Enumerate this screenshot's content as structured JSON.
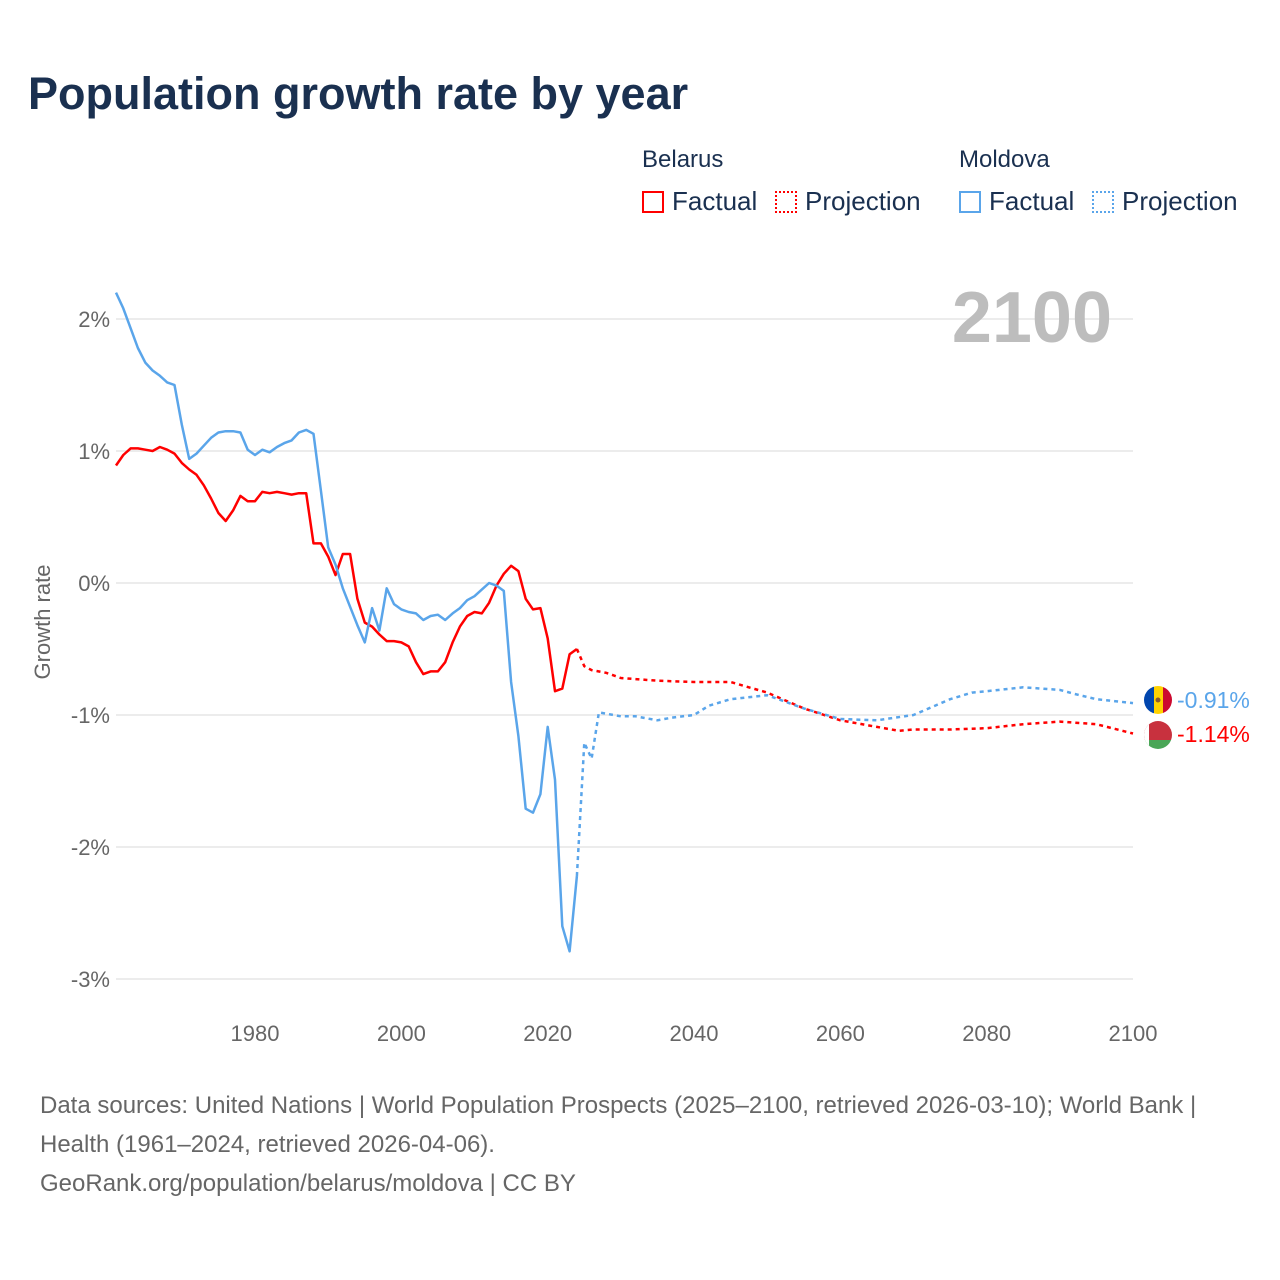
{
  "title": "Population growth rate by year",
  "legend": {
    "groups": [
      {
        "name": "Belarus",
        "factual": "Factual",
        "projection": "Projection",
        "color": "#ff0000"
      },
      {
        "name": "Moldova",
        "factual": "Factual",
        "projection": "Projection",
        "color": "#5aa5ea"
      }
    ]
  },
  "year_label": "2100",
  "end_labels": {
    "moldova": "-0.91%",
    "belarus": "-1.14%"
  },
  "footer": {
    "sources": "Data sources: United Nations | World Population Prospects (2025–2100, retrieved 2026-03-10); World Bank | Health (1961–2024, retrieved 2026-04-06).",
    "credit": "GeoRank.org/population/belarus/moldova | CC BY"
  },
  "chart_data": {
    "type": "line",
    "title": "Population growth rate by year",
    "xlabel": "",
    "ylabel": "Growth rate",
    "xlim": [
      1961,
      2100
    ],
    "ylim": [
      -3.3,
      2.4
    ],
    "grid": true,
    "x_ticks": [
      1980,
      2000,
      2020,
      2040,
      2060,
      2080,
      2100
    ],
    "x_tick_labels": [
      "1980",
      "2000",
      "2020",
      "2040",
      "2060",
      "2080",
      "2100"
    ],
    "y_ticks": [
      2,
      1,
      0,
      -1,
      -2,
      -3
    ],
    "y_tick_labels": [
      "2%",
      "1%",
      "0%",
      "-1%",
      "-2%",
      "-3%"
    ],
    "legend_placement": "top-right",
    "series": [
      {
        "name": "Belarus Factual",
        "color": "#ff0000",
        "style": "solid",
        "x": [
          1961,
          1962,
          1963,
          1964,
          1965,
          1966,
          1967,
          1968,
          1969,
          1970,
          1971,
          1972,
          1973,
          1974,
          1975,
          1976,
          1977,
          1978,
          1979,
          1980,
          1981,
          1982,
          1983,
          1984,
          1985,
          1986,
          1987,
          1988,
          1989,
          1990,
          1991,
          1992,
          1993,
          1994,
          1995,
          1996,
          1997,
          1998,
          1999,
          2000,
          2001,
          2002,
          2003,
          2004,
          2005,
          2006,
          2007,
          2008,
          2009,
          2010,
          2011,
          2012,
          2013,
          2014,
          2015,
          2016,
          2017,
          2018,
          2019,
          2020,
          2021,
          2022,
          2023,
          2024
        ],
        "y": [
          0.89,
          0.97,
          1.02,
          1.02,
          1.01,
          1.0,
          1.03,
          1.01,
          0.98,
          0.91,
          0.86,
          0.82,
          0.74,
          0.64,
          0.53,
          0.47,
          0.55,
          0.66,
          0.62,
          0.62,
          0.69,
          0.68,
          0.69,
          0.68,
          0.67,
          0.68,
          0.68,
          0.3,
          0.3,
          0.2,
          0.06,
          0.22,
          0.22,
          -0.12,
          -0.3,
          -0.33,
          -0.39,
          -0.44,
          -0.44,
          -0.45,
          -0.48,
          -0.6,
          -0.69,
          -0.67,
          -0.67,
          -0.6,
          -0.45,
          -0.33,
          -0.25,
          -0.22,
          -0.23,
          -0.15,
          -0.02,
          0.07,
          0.13,
          0.09,
          -0.12,
          -0.2,
          -0.19,
          -0.42,
          -0.82,
          -0.8,
          -0.54,
          -0.5
        ]
      },
      {
        "name": "Belarus Projection",
        "color": "#ff0000",
        "style": "dotted",
        "x": [
          2024,
          2025,
          2026,
          2028,
          2030,
          2035,
          2040,
          2045,
          2050,
          2055,
          2060,
          2065,
          2068,
          2070,
          2075,
          2080,
          2085,
          2090,
          2095,
          2100
        ],
        "y": [
          -0.5,
          -0.63,
          -0.66,
          -0.68,
          -0.72,
          -0.74,
          -0.75,
          -0.75,
          -0.83,
          -0.95,
          -1.04,
          -1.09,
          -1.12,
          -1.11,
          -1.11,
          -1.1,
          -1.07,
          -1.05,
          -1.07,
          -1.14
        ]
      },
      {
        "name": "Moldova Factual",
        "color": "#5aa5ea",
        "style": "solid",
        "x": [
          1961,
          1962,
          1963,
          1964,
          1965,
          1966,
          1967,
          1968,
          1969,
          1970,
          1971,
          1972,
          1973,
          1974,
          1975,
          1976,
          1977,
          1978,
          1979,
          1980,
          1981,
          1982,
          1983,
          1984,
          1985,
          1986,
          1987,
          1988,
          1989,
          1990,
          1991,
          1992,
          1993,
          1994,
          1995,
          1996,
          1997,
          1998,
          1999,
          2000,
          2001,
          2002,
          2003,
          2004,
          2005,
          2006,
          2007,
          2008,
          2009,
          2010,
          2011,
          2012,
          2013,
          2014,
          2015,
          2016,
          2017,
          2018,
          2019,
          2020,
          2021,
          2022,
          2023,
          2024
        ],
        "y": [
          2.2,
          2.08,
          1.93,
          1.78,
          1.67,
          1.61,
          1.57,
          1.52,
          1.5,
          1.2,
          0.94,
          0.98,
          1.04,
          1.1,
          1.14,
          1.15,
          1.15,
          1.14,
          1.01,
          0.97,
          1.01,
          0.99,
          1.03,
          1.06,
          1.08,
          1.14,
          1.16,
          1.13,
          0.7,
          0.27,
          0.14,
          -0.04,
          -0.18,
          -0.32,
          -0.45,
          -0.19,
          -0.36,
          -0.04,
          -0.16,
          -0.2,
          -0.22,
          -0.23,
          -0.28,
          -0.25,
          -0.24,
          -0.28,
          -0.23,
          -0.19,
          -0.13,
          -0.1,
          -0.05,
          0.0,
          -0.02,
          -0.06,
          -0.75,
          -1.16,
          -1.71,
          -1.74,
          -1.6,
          -1.09,
          -1.49,
          -2.6,
          -2.79,
          -2.22
        ]
      },
      {
        "name": "Moldova Projection",
        "color": "#5aa5ea",
        "style": "dotted",
        "x": [
          2024,
          2025,
          2026,
          2027,
          2030,
          2032,
          2035,
          2037,
          2040,
          2042,
          2045,
          2050,
          2055,
          2060,
          2065,
          2070,
          2075,
          2078,
          2080,
          2085,
          2090,
          2092,
          2095,
          2100
        ],
        "y": [
          -2.22,
          -1.21,
          -1.33,
          -0.98,
          -1.01,
          -1.01,
          -1.04,
          -1.02,
          -1.0,
          -0.93,
          -0.88,
          -0.85,
          -0.95,
          -1.03,
          -1.04,
          -1.0,
          -0.88,
          -0.83,
          -0.82,
          -0.79,
          -0.81,
          -0.84,
          -0.88,
          -0.91
        ]
      }
    ]
  }
}
